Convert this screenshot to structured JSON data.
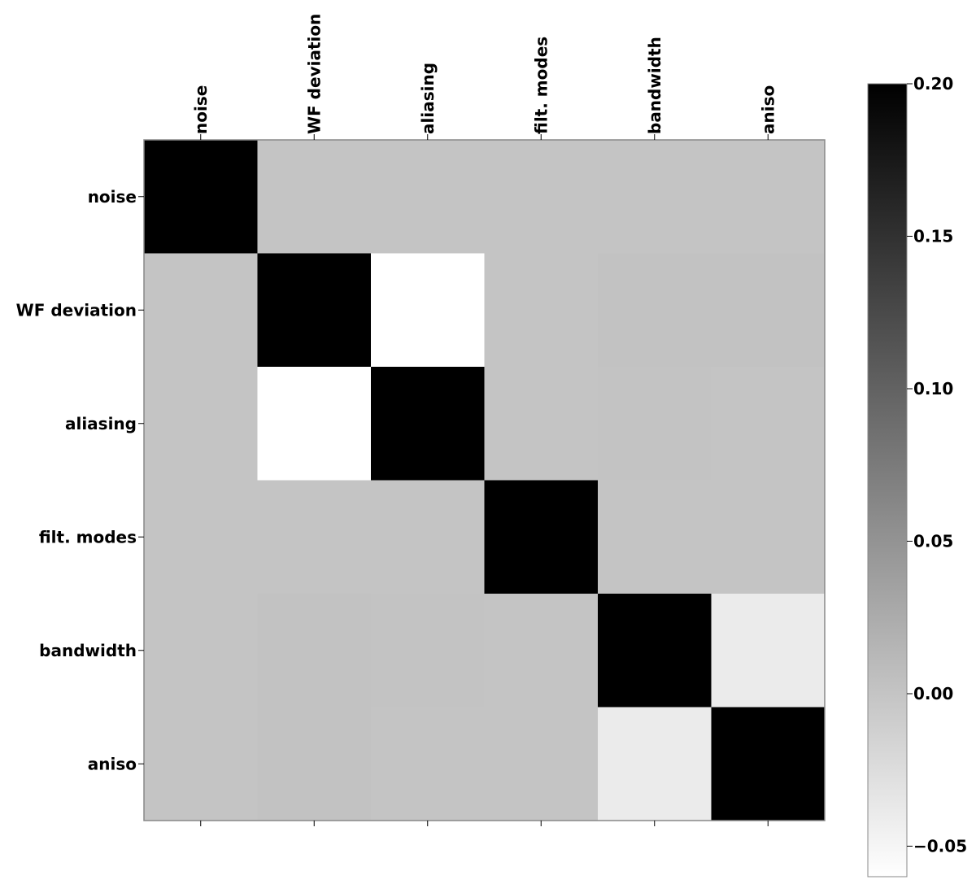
{
  "chart_data": {
    "type": "heatmap",
    "title": "",
    "xlabel": "",
    "ylabel": "",
    "x_labels": [
      "noise",
      "WF deviation",
      "aliasing",
      "filt. modes",
      "bandwidth",
      "aniso"
    ],
    "y_labels": [
      "noise",
      "WF deviation",
      "aliasing",
      "filt. modes",
      "bandwidth",
      "aniso"
    ],
    "x_tick_position": "top",
    "values": [
      [
        1.0,
        0.0,
        0.0,
        0.0,
        0.0,
        0.0
      ],
      [
        0.0,
        1.0,
        -0.062,
        0.0,
        0.002,
        0.002
      ],
      [
        0.0,
        -0.062,
        1.0,
        0.0,
        0.001,
        0.0
      ],
      [
        0.0,
        0.0,
        0.0,
        1.0,
        0.0,
        0.0
      ],
      [
        0.0,
        0.002,
        0.001,
        0.0,
        1.0,
        -0.04
      ],
      [
        0.0,
        0.002,
        0.0,
        0.0,
        -0.04,
        1.0
      ]
    ],
    "colormap": "gray_r",
    "colorbar": {
      "vmin": -0.06,
      "vmax": 0.2,
      "ticks": [
        0.2,
        0.15,
        0.1,
        0.05,
        0.0,
        -0.05
      ],
      "tick_labels": [
        "0.20",
        "0.15",
        "0.10",
        "0.05",
        "0.00",
        "−0.05"
      ]
    },
    "grid": false
  }
}
